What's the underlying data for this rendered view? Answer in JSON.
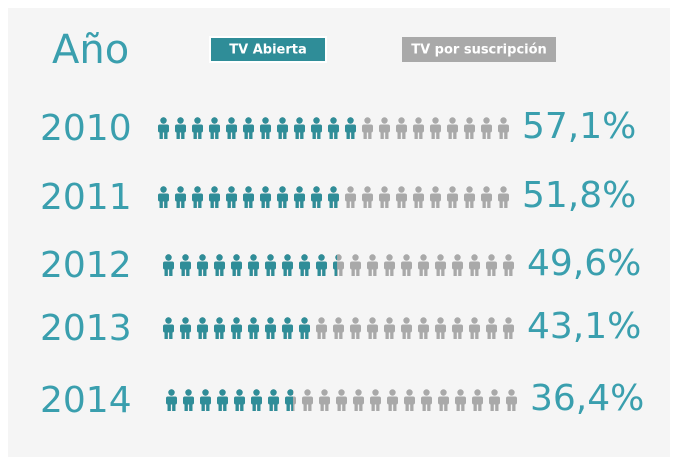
{
  "chart_data": {
    "type": "pictogram",
    "category_label": "Año",
    "categories": [
      "2010",
      "2011",
      "2012",
      "2013",
      "2014"
    ],
    "values": [
      57.1,
      51.8,
      49.6,
      43.1,
      36.4
    ],
    "value_labels": [
      "57,1%",
      "51,8%",
      "49,6%",
      "43,1%",
      "36,4%"
    ],
    "series": [
      {
        "name": "TV Abierta",
        "color": "#2f8d98"
      },
      {
        "name": "TV por suscripción",
        "color": "#a9a9a9"
      }
    ]
  }
}
